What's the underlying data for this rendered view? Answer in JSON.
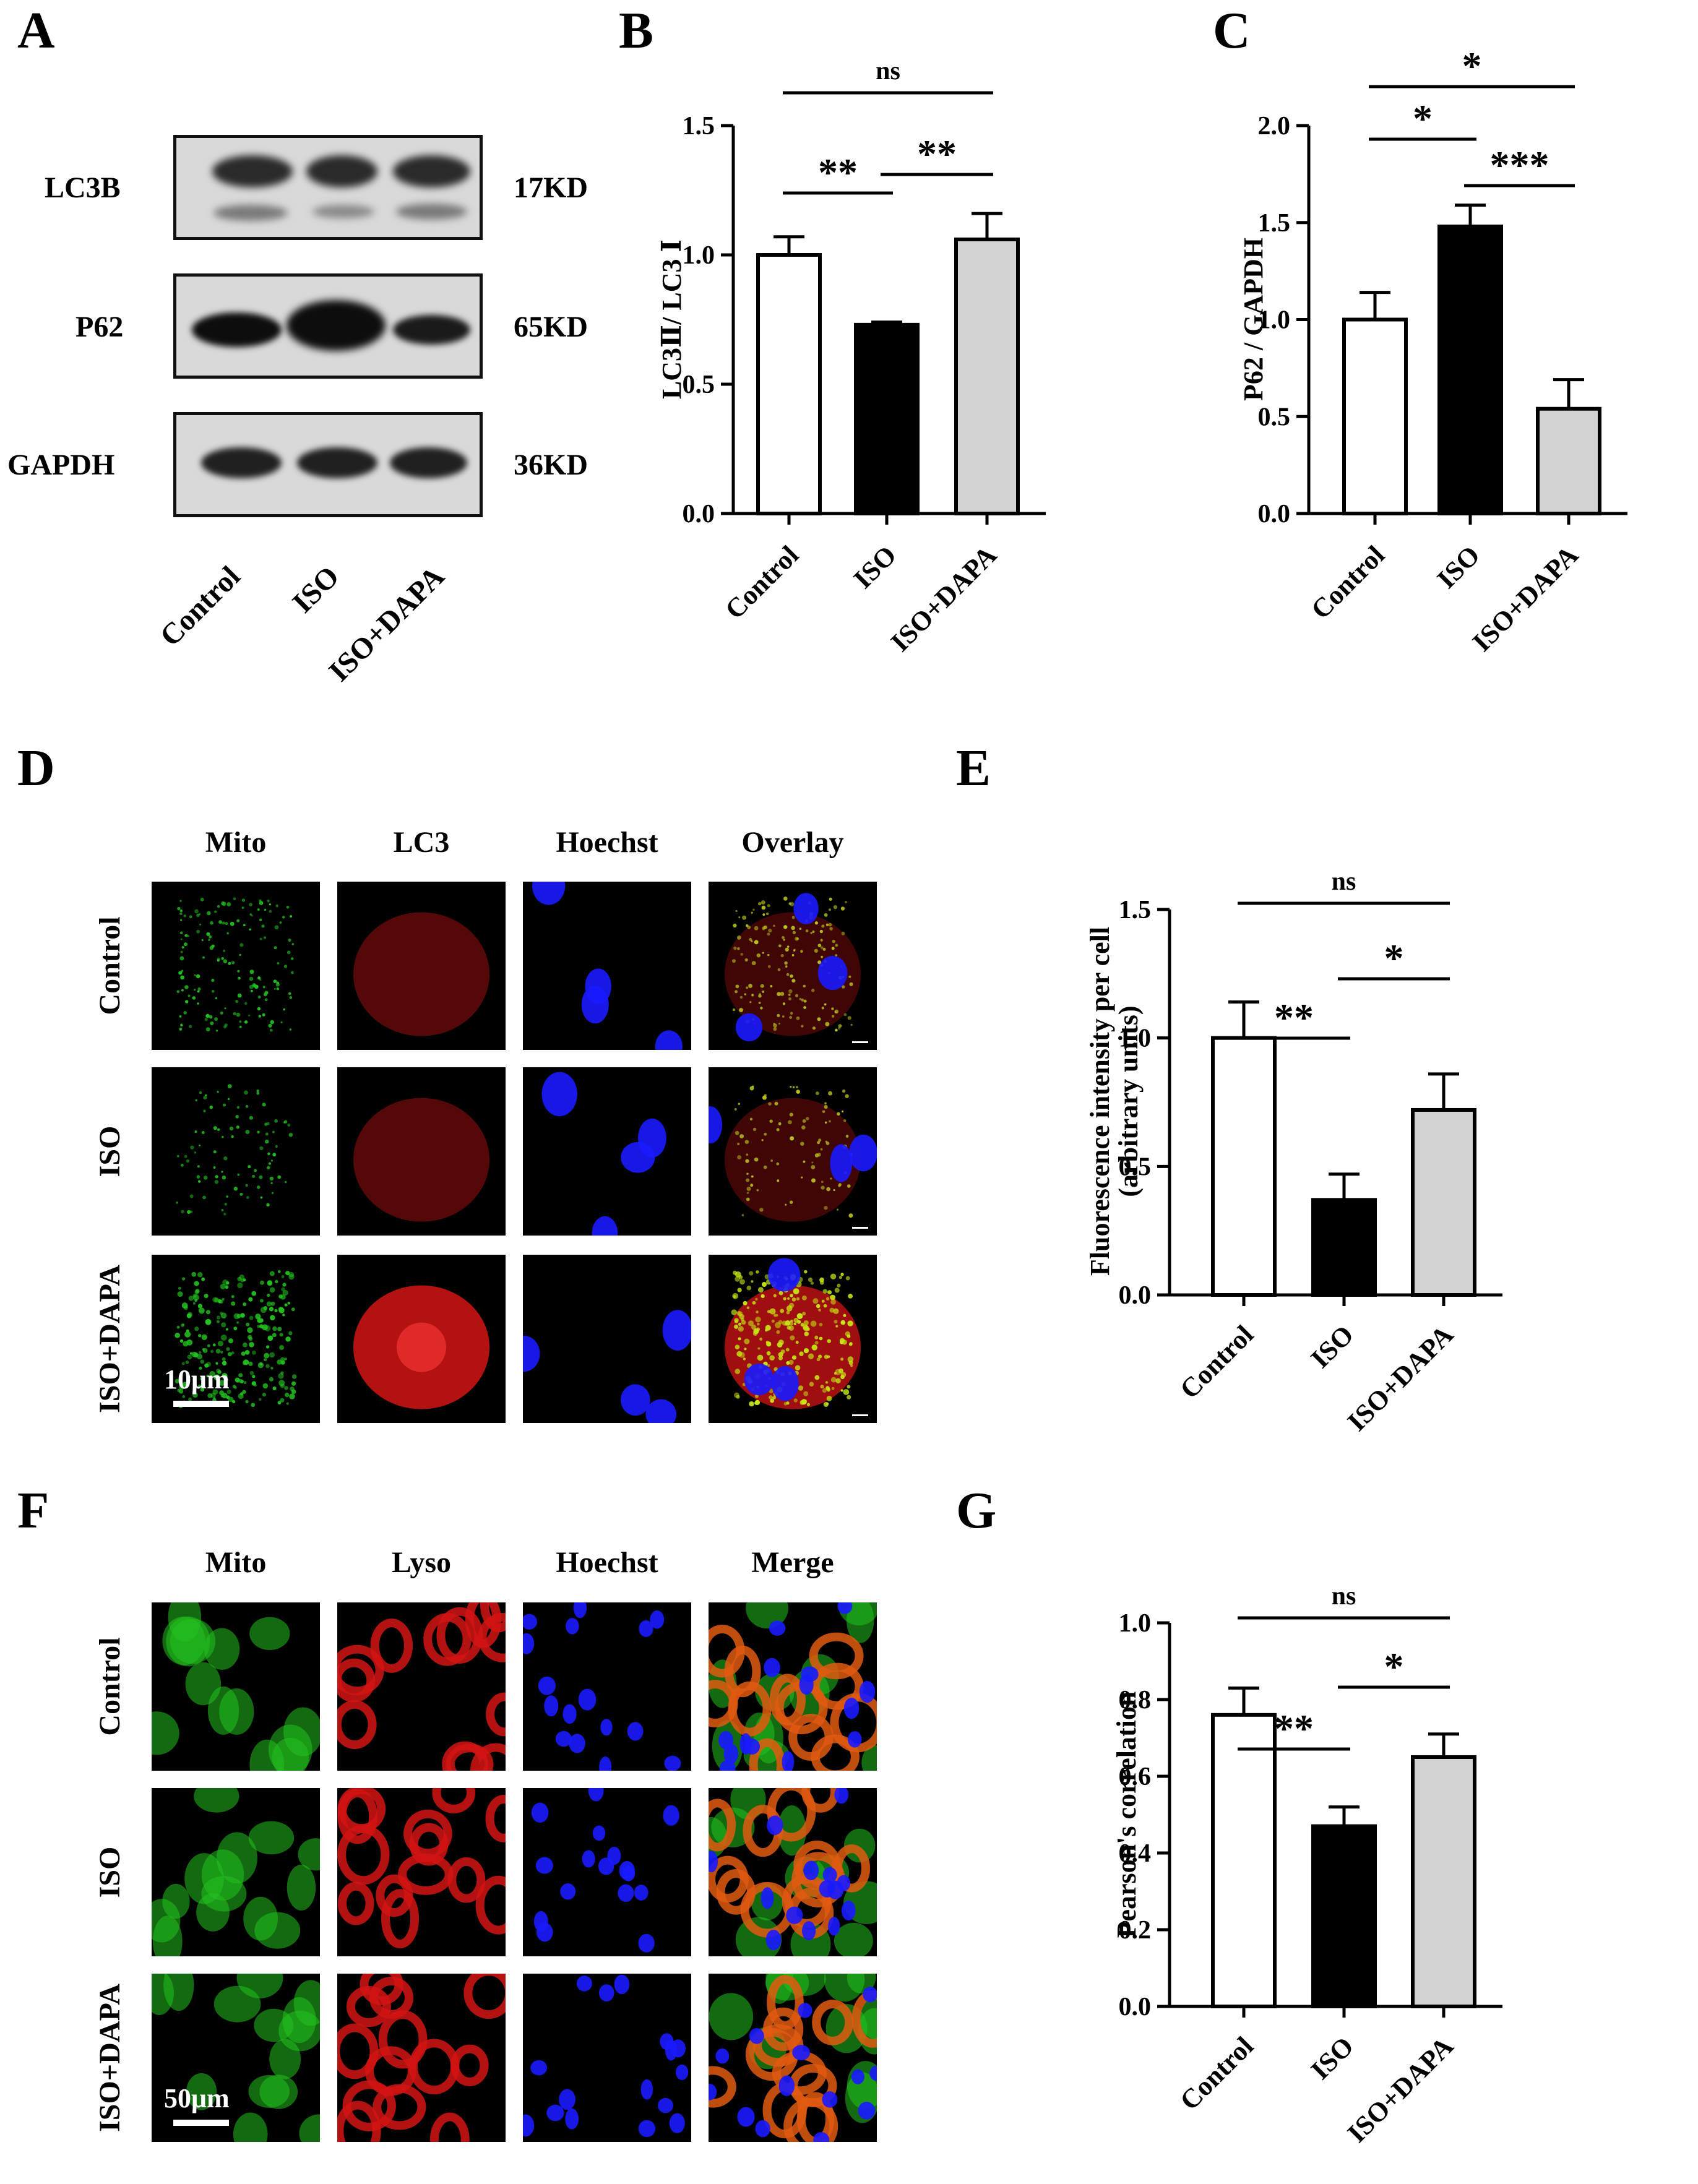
{
  "panels": {
    "a": "A",
    "b": "B",
    "c": "C",
    "d": "D",
    "e": "E",
    "f": "F",
    "g": "G"
  },
  "blot": {
    "rows": [
      {
        "protein": "LC3B",
        "size": "17KD"
      },
      {
        "protein": "P62",
        "size": "65KD"
      },
      {
        "protein": "GAPDH",
        "size": "36KD"
      }
    ],
    "lanes": [
      "Control",
      "ISO",
      "ISO+DAPA"
    ]
  },
  "micro_d": {
    "columns": [
      "Mito",
      "LC3",
      "Hoechst",
      "Overlay"
    ],
    "rows": [
      "Control",
      "ISO",
      "ISO+DAPA"
    ],
    "scalebar": "10μm"
  },
  "micro_f": {
    "columns": [
      "Mito",
      "Lyso",
      "Hoechst",
      "Merge"
    ],
    "rows": [
      "Control",
      "ISO",
      "ISO+DAPA"
    ],
    "scalebar": "50μm"
  },
  "colors": {
    "control_bar": "#ffffff",
    "iso_bar": "#000000",
    "dapa_bar": "#d3d3d3",
    "mito": "#22c11f",
    "lc3": "#d41414",
    "hoechst": "#1a1aff"
  },
  "chart_data": [
    {
      "panel": "B",
      "type": "bar",
      "categories": [
        "Control",
        "ISO",
        "ISO+DAPA"
      ],
      "values": [
        1.0,
        0.73,
        1.06
      ],
      "errors": [
        0.07,
        0.01,
        0.1
      ],
      "ylabel": "LC3Ⅱ/ LC3 Ⅰ",
      "ylim": [
        0,
        1.5
      ],
      "yticks": [
        "0.0",
        "0.5",
        "1.0",
        "1.5"
      ],
      "significance": [
        {
          "from": 0,
          "to": 2,
          "label": "ns",
          "level": 2
        },
        {
          "from": 0,
          "to": 1,
          "label": "**",
          "level": 1
        },
        {
          "from": 1,
          "to": 2,
          "label": "**",
          "level": 0
        }
      ]
    },
    {
      "panel": "C",
      "type": "bar",
      "categories": [
        "Control",
        "ISO",
        "ISO+DAPA"
      ],
      "values": [
        1.0,
        1.48,
        0.54
      ],
      "errors": [
        0.14,
        0.11,
        0.15
      ],
      "ylabel": "P62 / GAPDH",
      "ylim": [
        0,
        2.0
      ],
      "yticks": [
        "0.0",
        "0.5",
        "1.0",
        "1.5",
        "2.0"
      ],
      "significance": [
        {
          "from": 0,
          "to": 2,
          "label": "*",
          "level": 2
        },
        {
          "from": 0,
          "to": 1,
          "label": "*",
          "level": 1
        },
        {
          "from": 1,
          "to": 2,
          "label": "***",
          "level": 0
        }
      ]
    },
    {
      "panel": "E",
      "type": "bar",
      "categories": [
        "Control",
        "ISO",
        "ISO+DAPA"
      ],
      "values": [
        1.0,
        0.37,
        0.72
      ],
      "errors": [
        0.14,
        0.1,
        0.14
      ],
      "ylabel": "Fluorescence intensity per cell",
      "ylabel2": "(arbitrary units)",
      "ylim": [
        0,
        1.5
      ],
      "yticks": [
        "0.0",
        "0.5",
        "1.0",
        "1.5"
      ],
      "significance": [
        {
          "from": 0,
          "to": 2,
          "label": "ns",
          "level": 2
        },
        {
          "from": 0,
          "to": 1,
          "label": "**",
          "level": 1
        },
        {
          "from": 1,
          "to": 2,
          "label": "*",
          "level": 0
        }
      ]
    },
    {
      "panel": "G",
      "type": "bar",
      "categories": [
        "Control",
        "ISO",
        "ISO+DAPA"
      ],
      "values": [
        0.76,
        0.47,
        0.65
      ],
      "errors": [
        0.07,
        0.05,
        0.06
      ],
      "ylabel": "Pearson's correlation",
      "ylim": [
        0,
        1.0
      ],
      "yticks": [
        "0.0",
        "0.2",
        "0.4",
        "0.6",
        "0.8",
        "1.0"
      ],
      "significance": [
        {
          "from": 0,
          "to": 2,
          "label": "ns",
          "level": 2
        },
        {
          "from": 0,
          "to": 1,
          "label": "**",
          "level": 1
        },
        {
          "from": 1,
          "to": 2,
          "label": "*",
          "level": 0
        }
      ]
    }
  ]
}
